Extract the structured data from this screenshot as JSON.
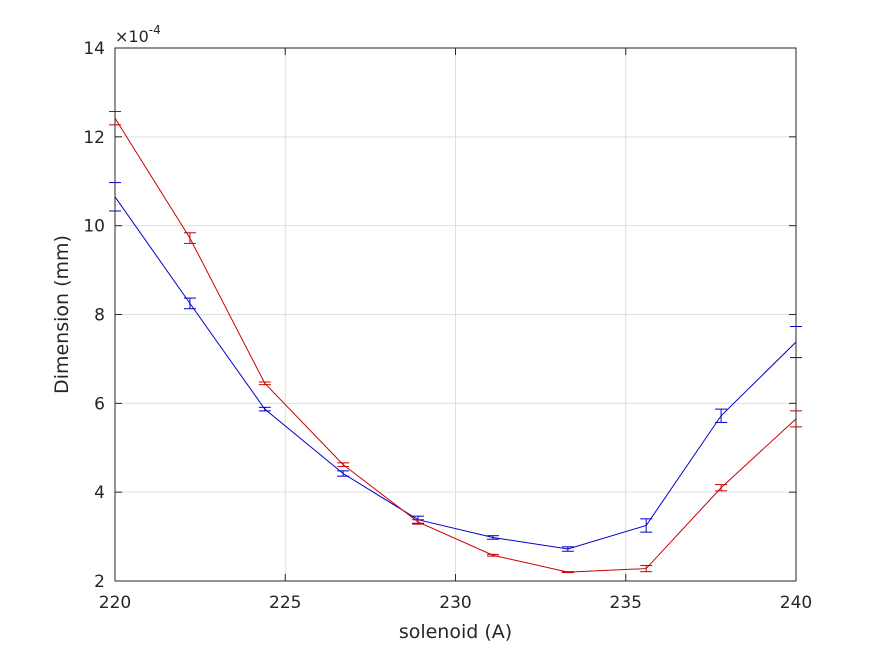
{
  "chart_data": {
    "type": "line",
    "xlabel": "solenoid (A)",
    "ylabel": "Dimension (mm)",
    "xlim": [
      220,
      240
    ],
    "ylim": [
      2,
      14
    ],
    "y_multiplier": "10^-4",
    "y_exponent_text": {
      "base": "×10",
      "exp": "-4"
    },
    "xticks": [
      "220",
      "225",
      "230",
      "235",
      "240"
    ],
    "yticks": [
      "2",
      "4",
      "6",
      "8",
      "10",
      "12",
      "14"
    ],
    "grid": true,
    "legend": "none",
    "x": [
      220,
      222.2,
      224.4,
      226.7,
      228.9,
      231.1,
      233.3,
      235.6,
      237.8,
      240
    ],
    "series": [
      {
        "color": "#0000cc",
        "values": [
          10.65,
          8.25,
          5.87,
          4.42,
          3.38,
          2.98,
          2.72,
          3.25,
          5.72,
          7.38
        ],
        "errors": [
          0.32,
          0.12,
          0.04,
          0.06,
          0.08,
          0.04,
          0.05,
          0.15,
          0.15,
          0.35
        ]
      },
      {
        "color": "#cc0000",
        "values": [
          12.42,
          9.72,
          6.45,
          4.62,
          3.33,
          2.58,
          2.2,
          2.28,
          4.1,
          5.65
        ],
        "errors": [
          0.15,
          0.12,
          0.03,
          0.04,
          0.05,
          0.02,
          0.01,
          0.07,
          0.07,
          0.18
        ]
      }
    ]
  }
}
